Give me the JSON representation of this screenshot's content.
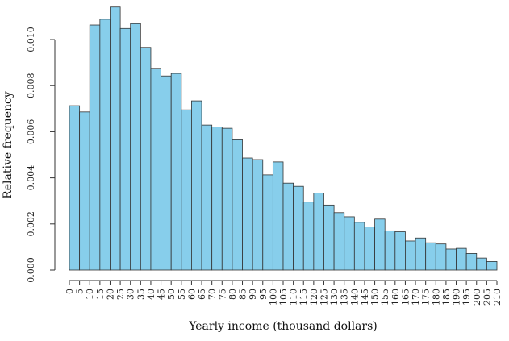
{
  "chart_data": {
    "type": "bar",
    "xlabel": "Yearly income (thousand dollars)",
    "ylabel": "Relative frequency",
    "bar_color": "#87CEEB",
    "edge_color": "#333333",
    "bin_width": 5,
    "xlim": [
      0,
      210
    ],
    "ylim": [
      0,
      0.0114
    ],
    "x_ticks": [
      "0",
      "5",
      "10",
      "15",
      "20",
      "25",
      "30",
      "35",
      "40",
      "45",
      "50",
      "55",
      "60",
      "65",
      "70",
      "75",
      "80",
      "85",
      "90",
      "95",
      "100",
      "105",
      "110",
      "115",
      "120",
      "125",
      "130",
      "135",
      "140",
      "145",
      "150",
      "155",
      "160",
      "165",
      "170",
      "175",
      "180",
      "185",
      "190",
      "195",
      "200",
      "205",
      "210"
    ],
    "y_ticks": [
      "0.000",
      "0.002",
      "0.004",
      "0.006",
      "0.008",
      "0.010"
    ],
    "bin_starts": [
      0,
      5,
      10,
      15,
      20,
      25,
      30,
      35,
      40,
      45,
      50,
      55,
      60,
      65,
      70,
      75,
      80,
      85,
      90,
      95,
      100,
      105,
      110,
      115,
      120,
      125,
      130,
      135,
      140,
      145,
      150,
      155,
      160,
      165,
      170,
      175,
      180,
      185,
      190,
      195,
      200,
      205
    ],
    "values": [
      0.00713,
      0.00686,
      0.01063,
      0.01088,
      0.01141,
      0.01048,
      0.01069,
      0.00966,
      0.00875,
      0.00842,
      0.00853,
      0.00695,
      0.00734,
      0.00629,
      0.00621,
      0.00615,
      0.00565,
      0.00486,
      0.00479,
      0.00413,
      0.00469,
      0.00377,
      0.00363,
      0.00295,
      0.00334,
      0.00282,
      0.00249,
      0.00231,
      0.00207,
      0.00187,
      0.00221,
      0.0017,
      0.00166,
      0.00126,
      0.00139,
      0.00118,
      0.00113,
      0.00091,
      0.00094,
      0.00072,
      0.00052,
      0.00037
    ]
  }
}
